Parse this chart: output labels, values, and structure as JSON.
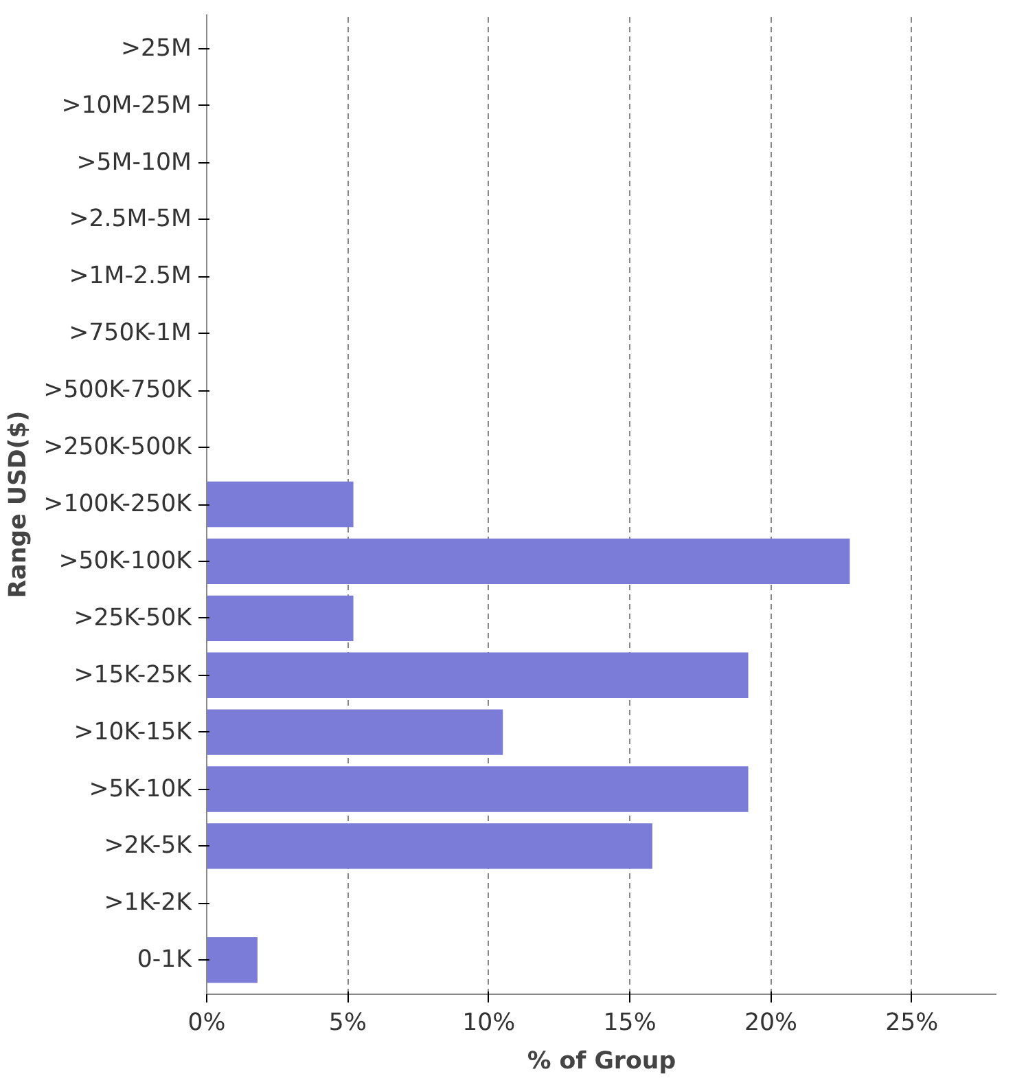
{
  "chart_data": {
    "type": "bar",
    "orientation": "horizontal",
    "xlabel": "% of Group",
    "ylabel": "Range USD($)",
    "categories": [
      ">25M",
      ">10M-25M",
      ">5M-10M",
      ">2.5M-5M",
      ">1M-2.5M",
      ">750K-1M",
      ">500K-750K",
      ">250K-500K",
      ">100K-250K",
      ">50K-100K",
      ">25K-50K",
      ">15K-25K",
      ">10K-15K",
      ">5K-10K",
      ">2K-5K",
      ">1K-2K",
      "0-1K"
    ],
    "values": [
      0,
      0,
      0,
      0,
      0,
      0,
      0,
      0,
      5.2,
      22.8,
      5.2,
      19.2,
      10.5,
      19.2,
      15.8,
      0,
      1.8
    ],
    "color": "#7b7bd8",
    "xlim": [
      0,
      28
    ],
    "xticks": [
      {
        "value": 0,
        "label": "0%"
      },
      {
        "value": 5,
        "label": "5%"
      },
      {
        "value": 10,
        "label": "10%"
      },
      {
        "value": 15,
        "label": "15%"
      },
      {
        "value": 20,
        "label": "20%"
      },
      {
        "value": 25,
        "label": "25%"
      }
    ],
    "grid": "x"
  }
}
